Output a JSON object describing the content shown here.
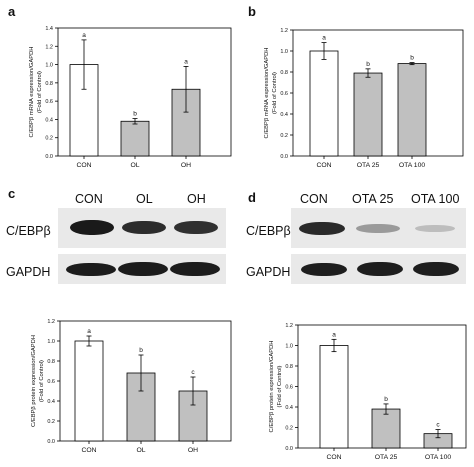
{
  "panels": {
    "a": {
      "letter": "a"
    },
    "b": {
      "letter": "b"
    },
    "c": {
      "letter": "c"
    },
    "d": {
      "letter": "d"
    }
  },
  "blots": {
    "c": {
      "headers": [
        "CON",
        "OL",
        "OH"
      ],
      "row1_label": "C/EBPβ",
      "row2_label": "GAPDH"
    },
    "d": {
      "headers": [
        "CON",
        "OTA 25",
        "OTA 100"
      ],
      "row1_label": "C/EBPβ",
      "row2_label": "GAPDH"
    }
  },
  "chart_data": [
    {
      "id": "a",
      "type": "bar",
      "categories": [
        "CON",
        "OL",
        "OH"
      ],
      "values": [
        1.0,
        0.38,
        0.73
      ],
      "errors": [
        0.27,
        0.03,
        0.25
      ],
      "letters": [
        "a",
        "b",
        "a"
      ],
      "colors": [
        "#ffffff",
        "#c0c0c0",
        "#c0c0c0"
      ],
      "ylabel": "C/EBPβ mRNA expression/GAPDH",
      "ylabel2": "(Fold of Control)",
      "ylim": [
        0,
        1.4
      ],
      "yticks": [
        "0.0",
        "0.2",
        "0.4",
        "0.6",
        "0.8",
        "1.0",
        "1.2",
        "1.4"
      ]
    },
    {
      "id": "b",
      "type": "bar",
      "categories": [
        "CON",
        "OTA 25",
        "OTA 100"
      ],
      "values": [
        1.0,
        0.79,
        0.88
      ],
      "errors": [
        0.08,
        0.04,
        0.01
      ],
      "letters": [
        "a",
        "b",
        "b"
      ],
      "colors": [
        "#ffffff",
        "#c0c0c0",
        "#c0c0c0"
      ],
      "ylabel": "C/EBPβ mRNA expression/GAPDH",
      "ylabel2": "(Fold of Control)",
      "ylim": [
        0,
        1.2
      ],
      "yticks": [
        "0.0",
        "0.2",
        "0.4",
        "0.6",
        "0.8",
        "1.0",
        "1.2"
      ]
    },
    {
      "id": "c",
      "type": "bar",
      "categories": [
        "CON",
        "OL",
        "OH"
      ],
      "values": [
        1.0,
        0.68,
        0.5
      ],
      "errors": [
        0.05,
        0.18,
        0.14
      ],
      "letters": [
        "a",
        "b",
        "c"
      ],
      "colors": [
        "#ffffff",
        "#c0c0c0",
        "#c0c0c0"
      ],
      "ylabel": "C/EBPβ protein expression/GAPDH",
      "ylabel2": "(Fold of Control)",
      "ylim": [
        0,
        1.2
      ],
      "yticks": [
        "0.0",
        "0.2",
        "0.4",
        "0.6",
        "0.8",
        "1.0",
        "1.2"
      ]
    },
    {
      "id": "d",
      "type": "bar",
      "categories": [
        "CON",
        "OTA 25",
        "OTA 100"
      ],
      "values": [
        1.0,
        0.38,
        0.14
      ],
      "errors": [
        0.06,
        0.05,
        0.04
      ],
      "letters": [
        "a",
        "b",
        "c"
      ],
      "colors": [
        "#ffffff",
        "#c0c0c0",
        "#c0c0c0"
      ],
      "ylabel": "C/EBPβ protein expression/GAPDH",
      "ylabel2": "(Fold of Control)",
      "ylim": [
        0,
        1.2
      ],
      "yticks": [
        "0.0",
        "0.2",
        "0.4",
        "0.6",
        "0.8",
        "1.0",
        "1.2"
      ]
    }
  ]
}
